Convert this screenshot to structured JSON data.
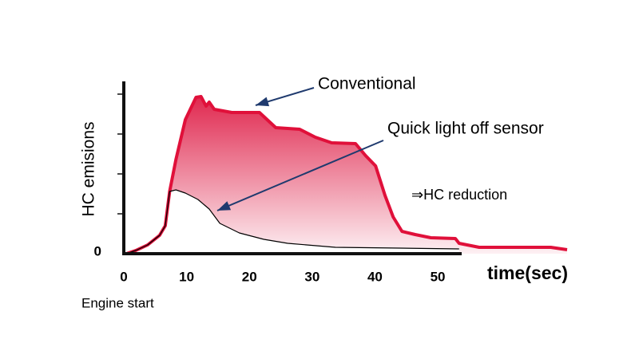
{
  "chart_data": {
    "type": "area",
    "y_label": "HC emisions",
    "x_label": "time(sec)",
    "x_note": "Engine start",
    "annotations": [
      "Conventional",
      "Quick light off sensor",
      "⇒HC reduction"
    ],
    "xlim": [
      0,
      72
    ],
    "xticks": [
      0,
      10,
      20,
      30,
      40,
      50
    ],
    "ylim": [
      0,
      4
    ],
    "yticks": [
      0
    ],
    "yminor_ticks": [
      1,
      2,
      3,
      4
    ],
    "series": [
      {
        "name": "Conventional",
        "color": "#e0103a",
        "x": [
          0.4,
          1.9,
          3.8,
          5.7,
          6.6,
          7.3,
          8.3,
          9.8,
          11.5,
          12.3,
          13.1,
          13.6,
          14.4,
          17.2,
          21.6,
          24.2,
          28,
          30.5,
          33.1,
          36.9,
          38.5,
          40.1,
          41.6,
          42.9,
          44.3,
          46.4,
          48.9,
          52.8,
          53.4,
          56.6,
          68,
          70.6
        ],
        "values": [
          0,
          0.08,
          0.22,
          0.46,
          0.7,
          1.56,
          2.36,
          3.36,
          3.92,
          3.94,
          3.7,
          3.8,
          3.62,
          3.54,
          3.54,
          3.16,
          3.12,
          2.92,
          2.78,
          2.76,
          2.46,
          2.2,
          1.46,
          0.92,
          0.56,
          0.48,
          0.4,
          0.38,
          0.26,
          0.16,
          0.16,
          0.1
        ]
      },
      {
        "name": "Quick light off sensor",
        "color": "#000000",
        "x": [
          0.4,
          1.9,
          3.8,
          5.7,
          6.6,
          7.3,
          8.3,
          9.8,
          11.8,
          13.6,
          15.3,
          18.4,
          22.3,
          26.1,
          33.7,
          43.9,
          53.4
        ],
        "values": [
          0,
          0.08,
          0.22,
          0.46,
          0.7,
          1.56,
          1.6,
          1.52,
          1.36,
          1.12,
          0.76,
          0.52,
          0.36,
          0.26,
          0.16,
          0.14,
          0.12
        ]
      }
    ]
  }
}
